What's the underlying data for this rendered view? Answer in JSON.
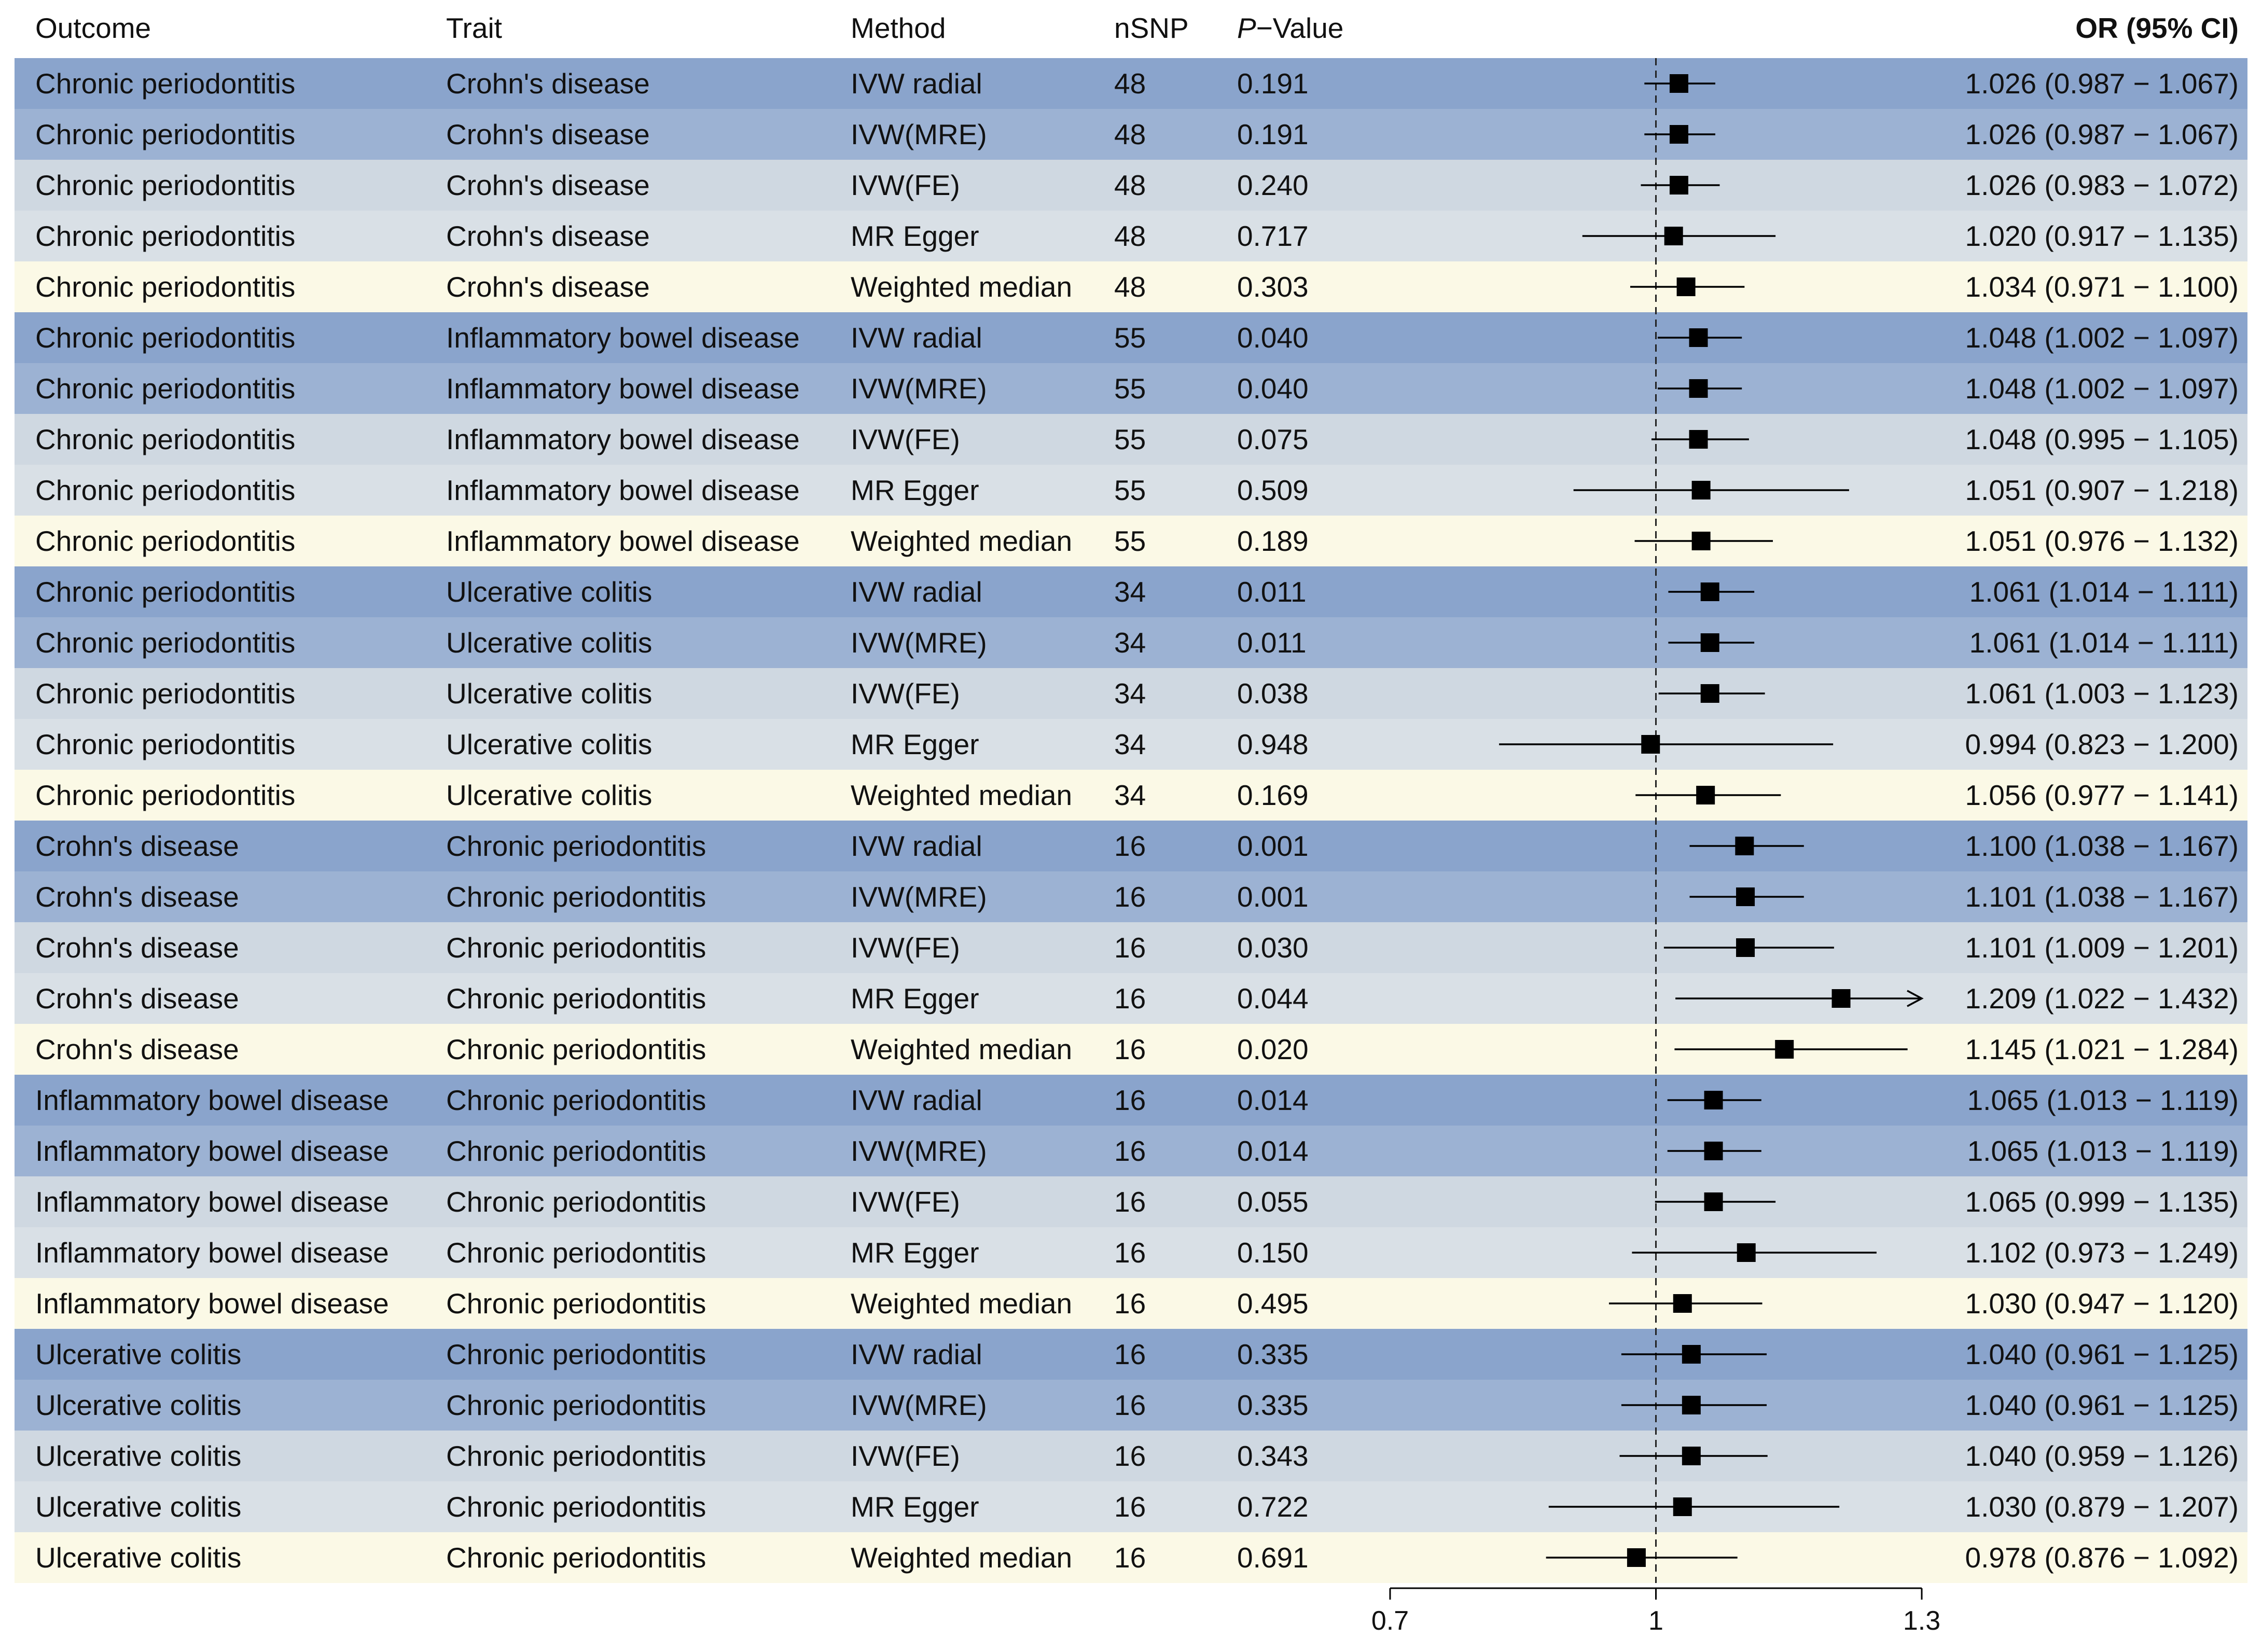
{
  "headers": {
    "outcome": "Outcome",
    "trait": "Trait",
    "method": "Method",
    "nsnp": "nSNP",
    "p_letter": "P",
    "p_rest": "−Value",
    "or": "OR (95% CI)"
  },
  "colors": {
    "band_dark": "#8aa4cc",
    "band_mid": "#9cb2d3",
    "band_light": "#cfd8e1",
    "band_lighter": "#d9e0e6",
    "band_cream": "#fbf9e6",
    "marker": "#000000"
  },
  "rows": [
    {
      "outcome": "Chronic periodontitis",
      "trait": "Crohn's disease",
      "method": "IVW radial",
      "nsnp": "48",
      "p": "0.191",
      "or_text": "1.026 (0.987 − 1.067)",
      "style": "dark"
    },
    {
      "outcome": "Chronic periodontitis",
      "trait": "Crohn's disease",
      "method": "IVW(MRE)",
      "nsnp": "48",
      "p": "0.191",
      "or_text": "1.026 (0.987 − 1.067)",
      "style": "mid"
    },
    {
      "outcome": "Chronic periodontitis",
      "trait": "Crohn's disease",
      "method": "IVW(FE)",
      "nsnp": "48",
      "p": "0.240",
      "or_text": "1.026 (0.983 − 1.072)",
      "style": "light"
    },
    {
      "outcome": "Chronic periodontitis",
      "trait": "Crohn's disease",
      "method": "MR Egger",
      "nsnp": "48",
      "p": "0.717",
      "or_text": "1.020 (0.917 − 1.135)",
      "style": "lighter"
    },
    {
      "outcome": "Chronic periodontitis",
      "trait": "Crohn's disease",
      "method": "Weighted median",
      "nsnp": "48",
      "p": "0.303",
      "or_text": "1.034 (0.971 − 1.100)",
      "style": "cream"
    },
    {
      "outcome": "Chronic periodontitis",
      "trait": "Inflammatory bowel disease",
      "method": "IVW radial",
      "nsnp": "55",
      "p": "0.040",
      "or_text": "1.048 (1.002 − 1.097)",
      "style": "dark"
    },
    {
      "outcome": "Chronic periodontitis",
      "trait": "Inflammatory bowel disease",
      "method": "IVW(MRE)",
      "nsnp": "55",
      "p": "0.040",
      "or_text": "1.048 (1.002 − 1.097)",
      "style": "mid"
    },
    {
      "outcome": "Chronic periodontitis",
      "trait": "Inflammatory bowel disease",
      "method": "IVW(FE)",
      "nsnp": "55",
      "p": "0.075",
      "or_text": "1.048 (0.995 − 1.105)",
      "style": "light"
    },
    {
      "outcome": "Chronic periodontitis",
      "trait": "Inflammatory bowel disease",
      "method": "MR Egger",
      "nsnp": "55",
      "p": "0.509",
      "or_text": "1.051 (0.907 − 1.218)",
      "style": "lighter"
    },
    {
      "outcome": "Chronic periodontitis",
      "trait": "Inflammatory bowel disease",
      "method": "Weighted median",
      "nsnp": "55",
      "p": "0.189",
      "or_text": "1.051 (0.976 − 1.132)",
      "style": "cream"
    },
    {
      "outcome": "Chronic periodontitis",
      "trait": "Ulcerative colitis",
      "method": "IVW radial",
      "nsnp": "34",
      "p": "0.011",
      "or_text": "1.061 (1.014 − 1.111)",
      "style": "dark"
    },
    {
      "outcome": "Chronic periodontitis",
      "trait": "Ulcerative colitis",
      "method": "IVW(MRE)",
      "nsnp": "34",
      "p": "0.011",
      "or_text": "1.061 (1.014 − 1.111)",
      "style": "mid"
    },
    {
      "outcome": "Chronic periodontitis",
      "trait": "Ulcerative colitis",
      "method": "IVW(FE)",
      "nsnp": "34",
      "p": "0.038",
      "or_text": "1.061 (1.003 − 1.123)",
      "style": "light"
    },
    {
      "outcome": "Chronic periodontitis",
      "trait": "Ulcerative colitis",
      "method": "MR Egger",
      "nsnp": "34",
      "p": "0.948",
      "or_text": "0.994 (0.823 − 1.200)",
      "style": "lighter"
    },
    {
      "outcome": "Chronic periodontitis",
      "trait": "Ulcerative colitis",
      "method": "Weighted median",
      "nsnp": "34",
      "p": "0.169",
      "or_text": "1.056 (0.977 − 1.141)",
      "style": "cream"
    },
    {
      "outcome": "Crohn's disease",
      "trait": "Chronic periodontitis",
      "method": "IVW radial",
      "nsnp": "16",
      "p": "0.001",
      "or_text": "1.100 (1.038 − 1.167)",
      "style": "dark"
    },
    {
      "outcome": "Crohn's disease",
      "trait": "Chronic periodontitis",
      "method": "IVW(MRE)",
      "nsnp": "16",
      "p": "0.001",
      "or_text": "1.101 (1.038 − 1.167)",
      "style": "mid"
    },
    {
      "outcome": "Crohn's disease",
      "trait": "Chronic periodontitis",
      "method": "IVW(FE)",
      "nsnp": "16",
      "p": "0.030",
      "or_text": "1.101 (1.009 − 1.201)",
      "style": "light"
    },
    {
      "outcome": "Crohn's disease",
      "trait": "Chronic periodontitis",
      "method": "MR Egger",
      "nsnp": "16",
      "p": "0.044",
      "or_text": "1.209 (1.022 − 1.432)",
      "style": "lighter"
    },
    {
      "outcome": "Crohn's disease",
      "trait": "Chronic periodontitis",
      "method": "Weighted median",
      "nsnp": "16",
      "p": "0.020",
      "or_text": "1.145 (1.021 − 1.284)",
      "style": "cream"
    },
    {
      "outcome": "Inflammatory bowel disease",
      "trait": "Chronic periodontitis",
      "method": "IVW radial",
      "nsnp": "16",
      "p": "0.014",
      "or_text": "1.065 (1.013 − 1.119)",
      "style": "dark"
    },
    {
      "outcome": "Inflammatory bowel disease",
      "trait": "Chronic periodontitis",
      "method": "IVW(MRE)",
      "nsnp": "16",
      "p": "0.014",
      "or_text": "1.065 (1.013 − 1.119)",
      "style": "mid"
    },
    {
      "outcome": "Inflammatory bowel disease",
      "trait": "Chronic periodontitis",
      "method": "IVW(FE)",
      "nsnp": "16",
      "p": "0.055",
      "or_text": "1.065 (0.999 − 1.135)",
      "style": "light"
    },
    {
      "outcome": "Inflammatory bowel disease",
      "trait": "Chronic periodontitis",
      "method": "MR Egger",
      "nsnp": "16",
      "p": "0.150",
      "or_text": "1.102 (0.973 − 1.249)",
      "style": "lighter"
    },
    {
      "outcome": "Inflammatory bowel disease",
      "trait": "Chronic periodontitis",
      "method": "Weighted median",
      "nsnp": "16",
      "p": "0.495",
      "or_text": "1.030 (0.947 − 1.120)",
      "style": "cream"
    },
    {
      "outcome": "Ulcerative colitis",
      "trait": "Chronic periodontitis",
      "method": "IVW radial",
      "nsnp": "16",
      "p": "0.335",
      "or_text": "1.040 (0.961 − 1.125)",
      "style": "dark"
    },
    {
      "outcome": "Ulcerative colitis",
      "trait": "Chronic periodontitis",
      "method": "IVW(MRE)",
      "nsnp": "16",
      "p": "0.335",
      "or_text": "1.040 (0.961 − 1.125)",
      "style": "mid"
    },
    {
      "outcome": "Ulcerative colitis",
      "trait": "Chronic periodontitis",
      "method": "IVW(FE)",
      "nsnp": "16",
      "p": "0.343",
      "or_text": "1.040 (0.959 − 1.126)",
      "style": "light"
    },
    {
      "outcome": "Ulcerative colitis",
      "trait": "Chronic periodontitis",
      "method": "MR Egger",
      "nsnp": "16",
      "p": "0.722",
      "or_text": "1.030 (0.879 − 1.207)",
      "style": "lighter"
    },
    {
      "outcome": "Ulcerative colitis",
      "trait": "Chronic periodontitis",
      "method": "Weighted median",
      "nsnp": "16",
      "p": "0.691",
      "or_text": "0.978 (0.876 − 1.092)",
      "style": "cream"
    }
  ],
  "chart_data": {
    "type": "scatter",
    "subtype": "forest",
    "title": "",
    "xlabel": "",
    "ylabel": "",
    "xlim": [
      0.7,
      1.3
    ],
    "x_ticks": [
      "0.7",
      "1",
      "1.3"
    ],
    "reference_line": 1,
    "grid": false,
    "or": [
      1.026,
      1.026,
      1.026,
      1.02,
      1.034,
      1.048,
      1.048,
      1.048,
      1.051,
      1.051,
      1.061,
      1.061,
      1.061,
      0.994,
      1.056,
      1.1,
      1.101,
      1.101,
      1.209,
      1.145,
      1.065,
      1.065,
      1.065,
      1.102,
      1.03,
      1.04,
      1.04,
      1.04,
      1.03,
      0.978
    ],
    "lower": [
      0.987,
      0.987,
      0.983,
      0.917,
      0.971,
      1.002,
      1.002,
      0.995,
      0.907,
      0.976,
      1.014,
      1.014,
      1.003,
      0.823,
      0.977,
      1.038,
      1.038,
      1.009,
      1.022,
      1.021,
      1.013,
      1.013,
      0.999,
      0.973,
      0.947,
      0.961,
      0.961,
      0.959,
      0.879,
      0.876
    ],
    "upper": [
      1.067,
      1.067,
      1.072,
      1.135,
      1.1,
      1.097,
      1.097,
      1.105,
      1.218,
      1.132,
      1.111,
      1.111,
      1.123,
      1.2,
      1.141,
      1.167,
      1.167,
      1.201,
      1.432,
      1.284,
      1.119,
      1.119,
      1.135,
      1.249,
      1.12,
      1.125,
      1.125,
      1.126,
      1.207,
      1.092
    ]
  }
}
